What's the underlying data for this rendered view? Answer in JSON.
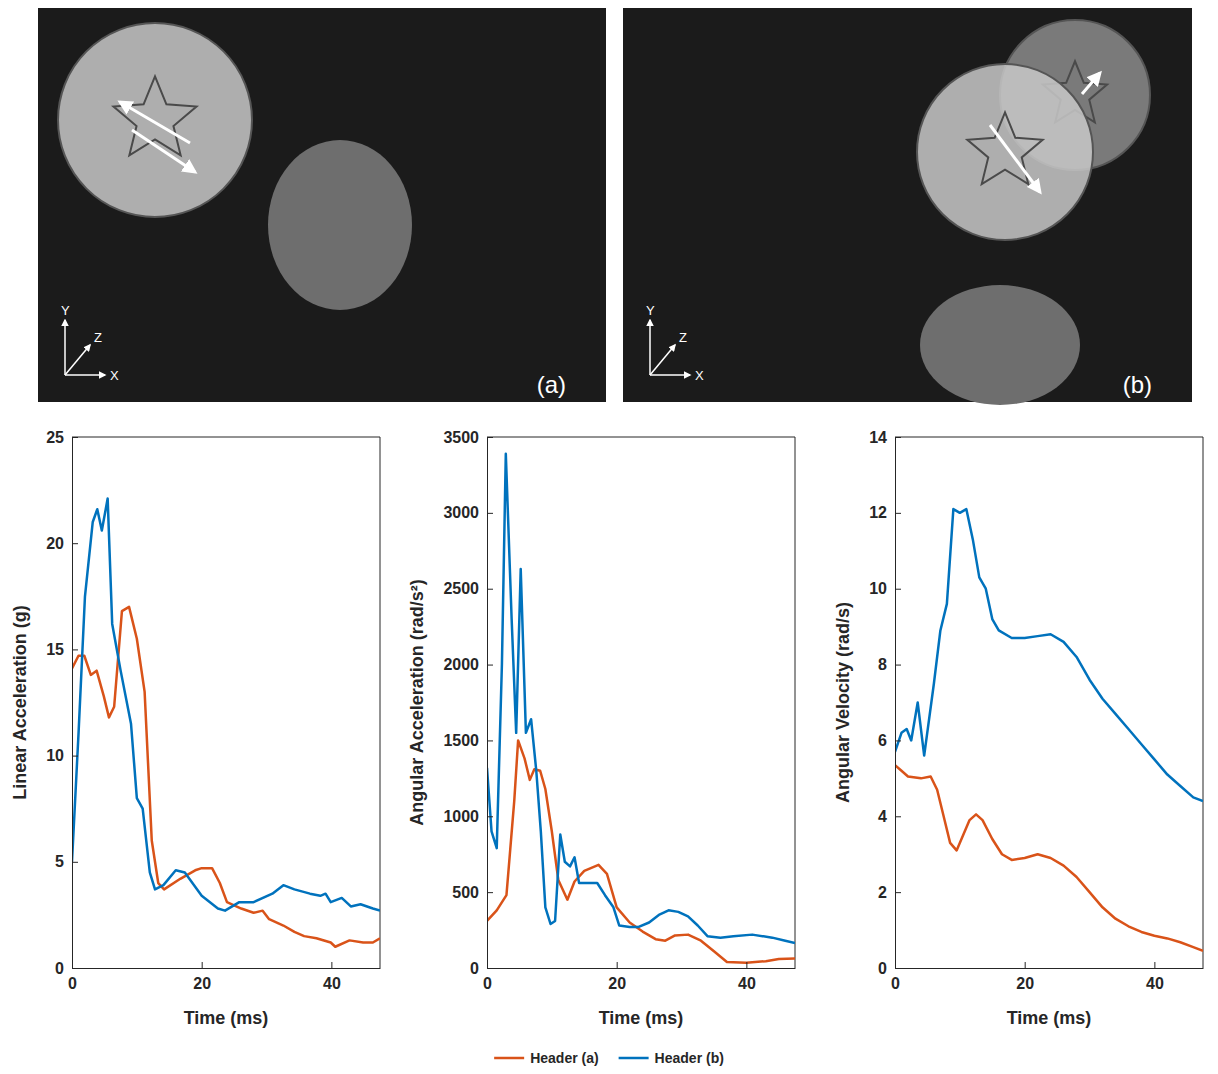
{
  "photos": [
    {
      "label": "(a)",
      "axes": [
        "X",
        "Y",
        "Z"
      ]
    },
    {
      "label": "(b)",
      "axes": [
        "X",
        "Y",
        "Z"
      ]
    }
  ],
  "chart_data": [
    {
      "type": "line",
      "x_label": "Time (ms)",
      "y_label": "Linear Acceleration (g)",
      "xlim": [
        0,
        47.5
      ],
      "xticks": [
        0,
        20,
        40
      ],
      "ylim": [
        0,
        25
      ],
      "yticks": [
        0,
        5,
        10,
        15,
        20,
        25
      ],
      "legend": "bottom",
      "series": [
        {
          "name": "Header (a)",
          "color": "#d95319",
          "x": [
            0,
            1,
            1.9,
            2.9,
            3.8,
            4.9,
            5.7,
            6.5,
            7.7,
            8.8,
            10,
            11.2,
            12.3,
            13.3,
            14.2,
            16.7,
            19,
            20,
            21.6,
            22.8,
            23.9,
            26.1,
            28,
            29.4,
            30.4,
            32.6,
            34.3,
            35.8,
            37.7,
            39.9,
            40.6,
            42.8,
            44.9,
            46.4,
            47.5
          ],
          "values": [
            14.1,
            14.7,
            14.7,
            13.8,
            14.0,
            12.8,
            11.8,
            12.3,
            16.8,
            17.0,
            15.5,
            13.0,
            6.0,
            4.0,
            3.7,
            4.2,
            4.6,
            4.7,
            4.7,
            4.0,
            3.1,
            2.8,
            2.6,
            2.7,
            2.3,
            2.0,
            1.7,
            1.5,
            1.4,
            1.2,
            1.0,
            1.3,
            1.2,
            1.2,
            1.4
          ]
        },
        {
          "name": "Header (b)",
          "color": "#0072bd",
          "x": [
            0,
            1,
            2,
            3.2,
            3.9,
            4.6,
            5.5,
            6.2,
            7.5,
            9.1,
            10,
            10.9,
            12,
            12.8,
            14.1,
            16,
            17.4,
            20,
            22.5,
            23.6,
            25.8,
            28,
            30.9,
            32.6,
            34.3,
            36.7,
            38.3,
            39.1,
            39.9,
            41.6,
            43,
            44.5,
            46.4,
            47.5
          ],
          "values": [
            5.0,
            11,
            17.5,
            21,
            21.6,
            20.6,
            22.1,
            16.2,
            14,
            11.5,
            8,
            7.5,
            4.5,
            3.7,
            3.9,
            4.6,
            4.5,
            3.4,
            2.8,
            2.7,
            3.1,
            3.1,
            3.5,
            3.9,
            3.7,
            3.5,
            3.4,
            3.5,
            3.1,
            3.3,
            2.9,
            3.0,
            2.8,
            2.7
          ]
        }
      ]
    },
    {
      "type": "line",
      "x_label": "Time (ms)",
      "y_label": "Angular Acceleration (rad/s²)",
      "xlim": [
        0,
        47.5
      ],
      "xticks": [
        0,
        20,
        40
      ],
      "ylim": [
        0,
        3500
      ],
      "yticks": [
        0,
        500,
        1000,
        1500,
        2000,
        2500,
        3000,
        3500
      ],
      "series": [
        {
          "color": "#d95319",
          "x": [
            0,
            1.5,
            3,
            4.2,
            4.8,
            5.8,
            6.6,
            7.3,
            8.2,
            9,
            10,
            11,
            12.4,
            13.5,
            15,
            17.2,
            18.5,
            20,
            22,
            24,
            26,
            27.5,
            29,
            31,
            33,
            35,
            37,
            40,
            43,
            45,
            47.5
          ],
          "values": [
            310,
            380,
            480,
            1100,
            1500,
            1380,
            1240,
            1310,
            1300,
            1180,
            900,
            580,
            450,
            570,
            640,
            680,
            620,
            400,
            300,
            240,
            190,
            180,
            215,
            220,
            180,
            110,
            40,
            35,
            45,
            60,
            62
          ]
        },
        {
          "color": "#0072bd",
          "x": [
            0,
            0.7,
            1.5,
            2.3,
            2.9,
            3.8,
            4.5,
            5.2,
            6,
            6.8,
            7.6,
            8.3,
            9,
            9.8,
            10.5,
            11.3,
            12,
            12.8,
            13.5,
            14.2,
            15.3,
            17,
            18.2,
            19.5,
            20.4,
            22,
            23.3,
            25,
            26.5,
            28,
            29.5,
            31,
            32.5,
            34,
            36,
            38,
            40.9,
            44,
            46,
            47.5
          ],
          "values": [
            1320,
            900,
            790,
            2000,
            3390,
            2300,
            1550,
            2630,
            1550,
            1640,
            1300,
            900,
            400,
            290,
            310,
            880,
            700,
            670,
            730,
            560,
            560,
            560,
            480,
            400,
            280,
            270,
            270,
            300,
            350,
            380,
            370,
            340,
            280,
            210,
            200,
            210,
            220,
            200,
            180,
            165
          ]
        }
      ]
    },
    {
      "type": "line",
      "x_label": "Time (ms)",
      "y_label": "Angular Velocity (rad/s)",
      "xlim": [
        0,
        47.5
      ],
      "xticks": [
        0,
        20,
        40
      ],
      "ylim": [
        0,
        14
      ],
      "yticks": [
        0,
        2,
        4,
        6,
        8,
        10,
        12,
        14
      ],
      "series": [
        {
          "color": "#d95319",
          "x": [
            0,
            1,
            2,
            4,
            5.5,
            6.5,
            7.5,
            8.5,
            9.5,
            10.5,
            11.5,
            12.5,
            13.5,
            15,
            16.5,
            18,
            20,
            22,
            24,
            26,
            28,
            30,
            32,
            34,
            36,
            38,
            40,
            42,
            44,
            46,
            47.5
          ],
          "values": [
            5.35,
            5.2,
            5.05,
            5.0,
            5.05,
            4.7,
            4.0,
            3.3,
            3.1,
            3.5,
            3.9,
            4.05,
            3.9,
            3.4,
            3.0,
            2.85,
            2.9,
            3.0,
            2.9,
            2.7,
            2.4,
            2.0,
            1.6,
            1.3,
            1.1,
            0.95,
            0.85,
            0.78,
            0.68,
            0.55,
            0.45
          ]
        },
        {
          "color": "#0072bd",
          "x": [
            0,
            1,
            1.8,
            2.5,
            3.5,
            4.5,
            6,
            7,
            8,
            9,
            10,
            11,
            12,
            13,
            14,
            15,
            16,
            18,
            20,
            22,
            24,
            26,
            28,
            30,
            32,
            34,
            36,
            38,
            40,
            42,
            44,
            46,
            47.5
          ],
          "values": [
            5.7,
            6.2,
            6.3,
            6.0,
            7.0,
            5.6,
            7.5,
            8.9,
            9.6,
            12.1,
            12.0,
            12.1,
            11.3,
            10.3,
            10.0,
            9.2,
            8.9,
            8.7,
            8.7,
            8.75,
            8.8,
            8.6,
            8.2,
            7.6,
            7.1,
            6.7,
            6.3,
            5.9,
            5.5,
            5.1,
            4.8,
            4.5,
            4.4
          ]
        }
      ]
    }
  ]
}
